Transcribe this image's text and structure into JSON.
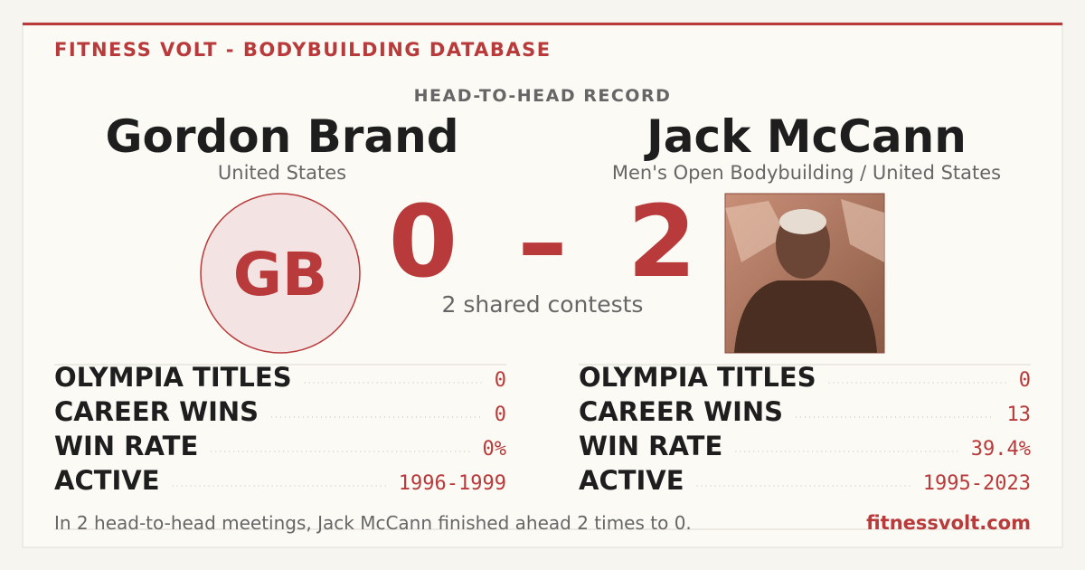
{
  "header": {
    "site": "FITNESS VOLT - BODYBUILDING DATABASE",
    "subtitle": "HEAD-TO-HEAD RECORD"
  },
  "competitors": [
    {
      "name": "Gordon Brand",
      "detail": "United States",
      "initials": "GB",
      "stats": [
        {
          "label": "OLYMPIA TITLES",
          "value": 0
        },
        {
          "label": "CAREER WINS",
          "value": 0
        },
        {
          "label": "WIN RATE",
          "value": "0%"
        },
        {
          "label": "ACTIVE",
          "value": "1996-1999"
        }
      ]
    },
    {
      "name": "Jack McCann",
      "detail": "Men's Open Bodybuilding / United States",
      "stats": [
        {
          "label": "OLYMPIA TITLES",
          "value": 0
        },
        {
          "label": "CAREER WINS",
          "value": 13
        },
        {
          "label": "WIN RATE",
          "value": "39.4%"
        },
        {
          "label": "ACTIVE",
          "value": "1995-2023"
        }
      ]
    }
  ],
  "score": {
    "left": 0,
    "separator": "–",
    "right": 2,
    "caption": "2 shared contests"
  },
  "footer": {
    "summary": "In 2 head-to-head meetings, Jack McCann finished ahead 2 times to 0.",
    "link": "fitnessvolt.com"
  }
}
